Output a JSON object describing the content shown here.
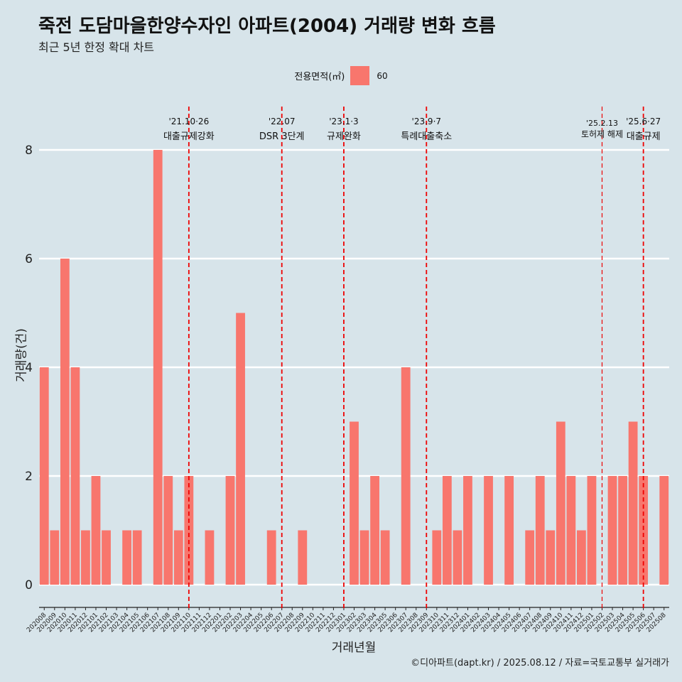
{
  "title": "죽전 도담마을한양수자인 아파트(2004) 거래량 변화 흐름",
  "subtitle": "최근 5년 한정 확대 차트",
  "legend": {
    "title": "전용면적(㎡)",
    "label": "60"
  },
  "caption": "©디아파트(dapt.kr) / 2025.08.12 / 자료=국토교통부 실거래가",
  "colors": {
    "bar": "#f8766d",
    "background": "#d7e4ea",
    "grid": "#ffffff",
    "event_line": "#ee0000"
  },
  "chart_data": {
    "type": "bar",
    "xlabel": "거래년월",
    "ylabel": "거래량(건)",
    "ylim": [
      0,
      8
    ],
    "yticks": [
      0,
      2,
      4,
      6,
      8
    ],
    "grid": true,
    "legend_position": "top",
    "categories": [
      "202008",
      "202009",
      "202010",
      "202011",
      "202012",
      "202101",
      "202102",
      "202103",
      "202104",
      "202105",
      "202106",
      "202107",
      "202108",
      "202109",
      "202110",
      "202111",
      "202112",
      "202201",
      "202202",
      "202203",
      "202204",
      "202205",
      "202206",
      "202207",
      "202208",
      "202209",
      "202210",
      "202211",
      "202212",
      "202301",
      "202302",
      "202303",
      "202304",
      "202305",
      "202306",
      "202307",
      "202308",
      "202309",
      "202310",
      "202311",
      "202312",
      "202401",
      "202402",
      "202403",
      "202404",
      "202405",
      "202406",
      "202407",
      "202408",
      "202409",
      "202410",
      "202411",
      "202412",
      "202501",
      "202502",
      "202503",
      "202504",
      "202505",
      "202506",
      "202507",
      "202508"
    ],
    "series": [
      {
        "name": "60",
        "values": [
          4,
          1,
          6,
          4,
          1,
          2,
          1,
          0,
          1,
          1,
          0,
          8,
          2,
          1,
          2,
          0,
          1,
          0,
          2,
          5,
          0,
          0,
          1,
          0,
          0,
          1,
          0,
          0,
          0,
          0,
          3,
          1,
          2,
          1,
          0,
          4,
          0,
          0,
          1,
          2,
          1,
          2,
          0,
          2,
          0,
          2,
          0,
          1,
          2,
          1,
          3,
          2,
          1,
          2,
          0,
          2,
          2,
          3,
          2,
          0,
          2
        ]
      }
    ],
    "events": [
      {
        "date": "'21.10·26",
        "label": "대출규제강화",
        "x_month": "202110"
      },
      {
        "date": "'22.07",
        "label": "DSR 3단계",
        "x_month": "202207"
      },
      {
        "date": "'23.1·3",
        "label": "규제완화",
        "x_month": "202301"
      },
      {
        "date": "'23.9·7",
        "label": "특례대출축소",
        "x_month": "202309"
      },
      {
        "date": "'25.2.13",
        "label": "토허제 해제",
        "x_month": "202502"
      },
      {
        "date": "'25.6·27",
        "label": "대출규제",
        "x_month": "202506"
      }
    ]
  }
}
